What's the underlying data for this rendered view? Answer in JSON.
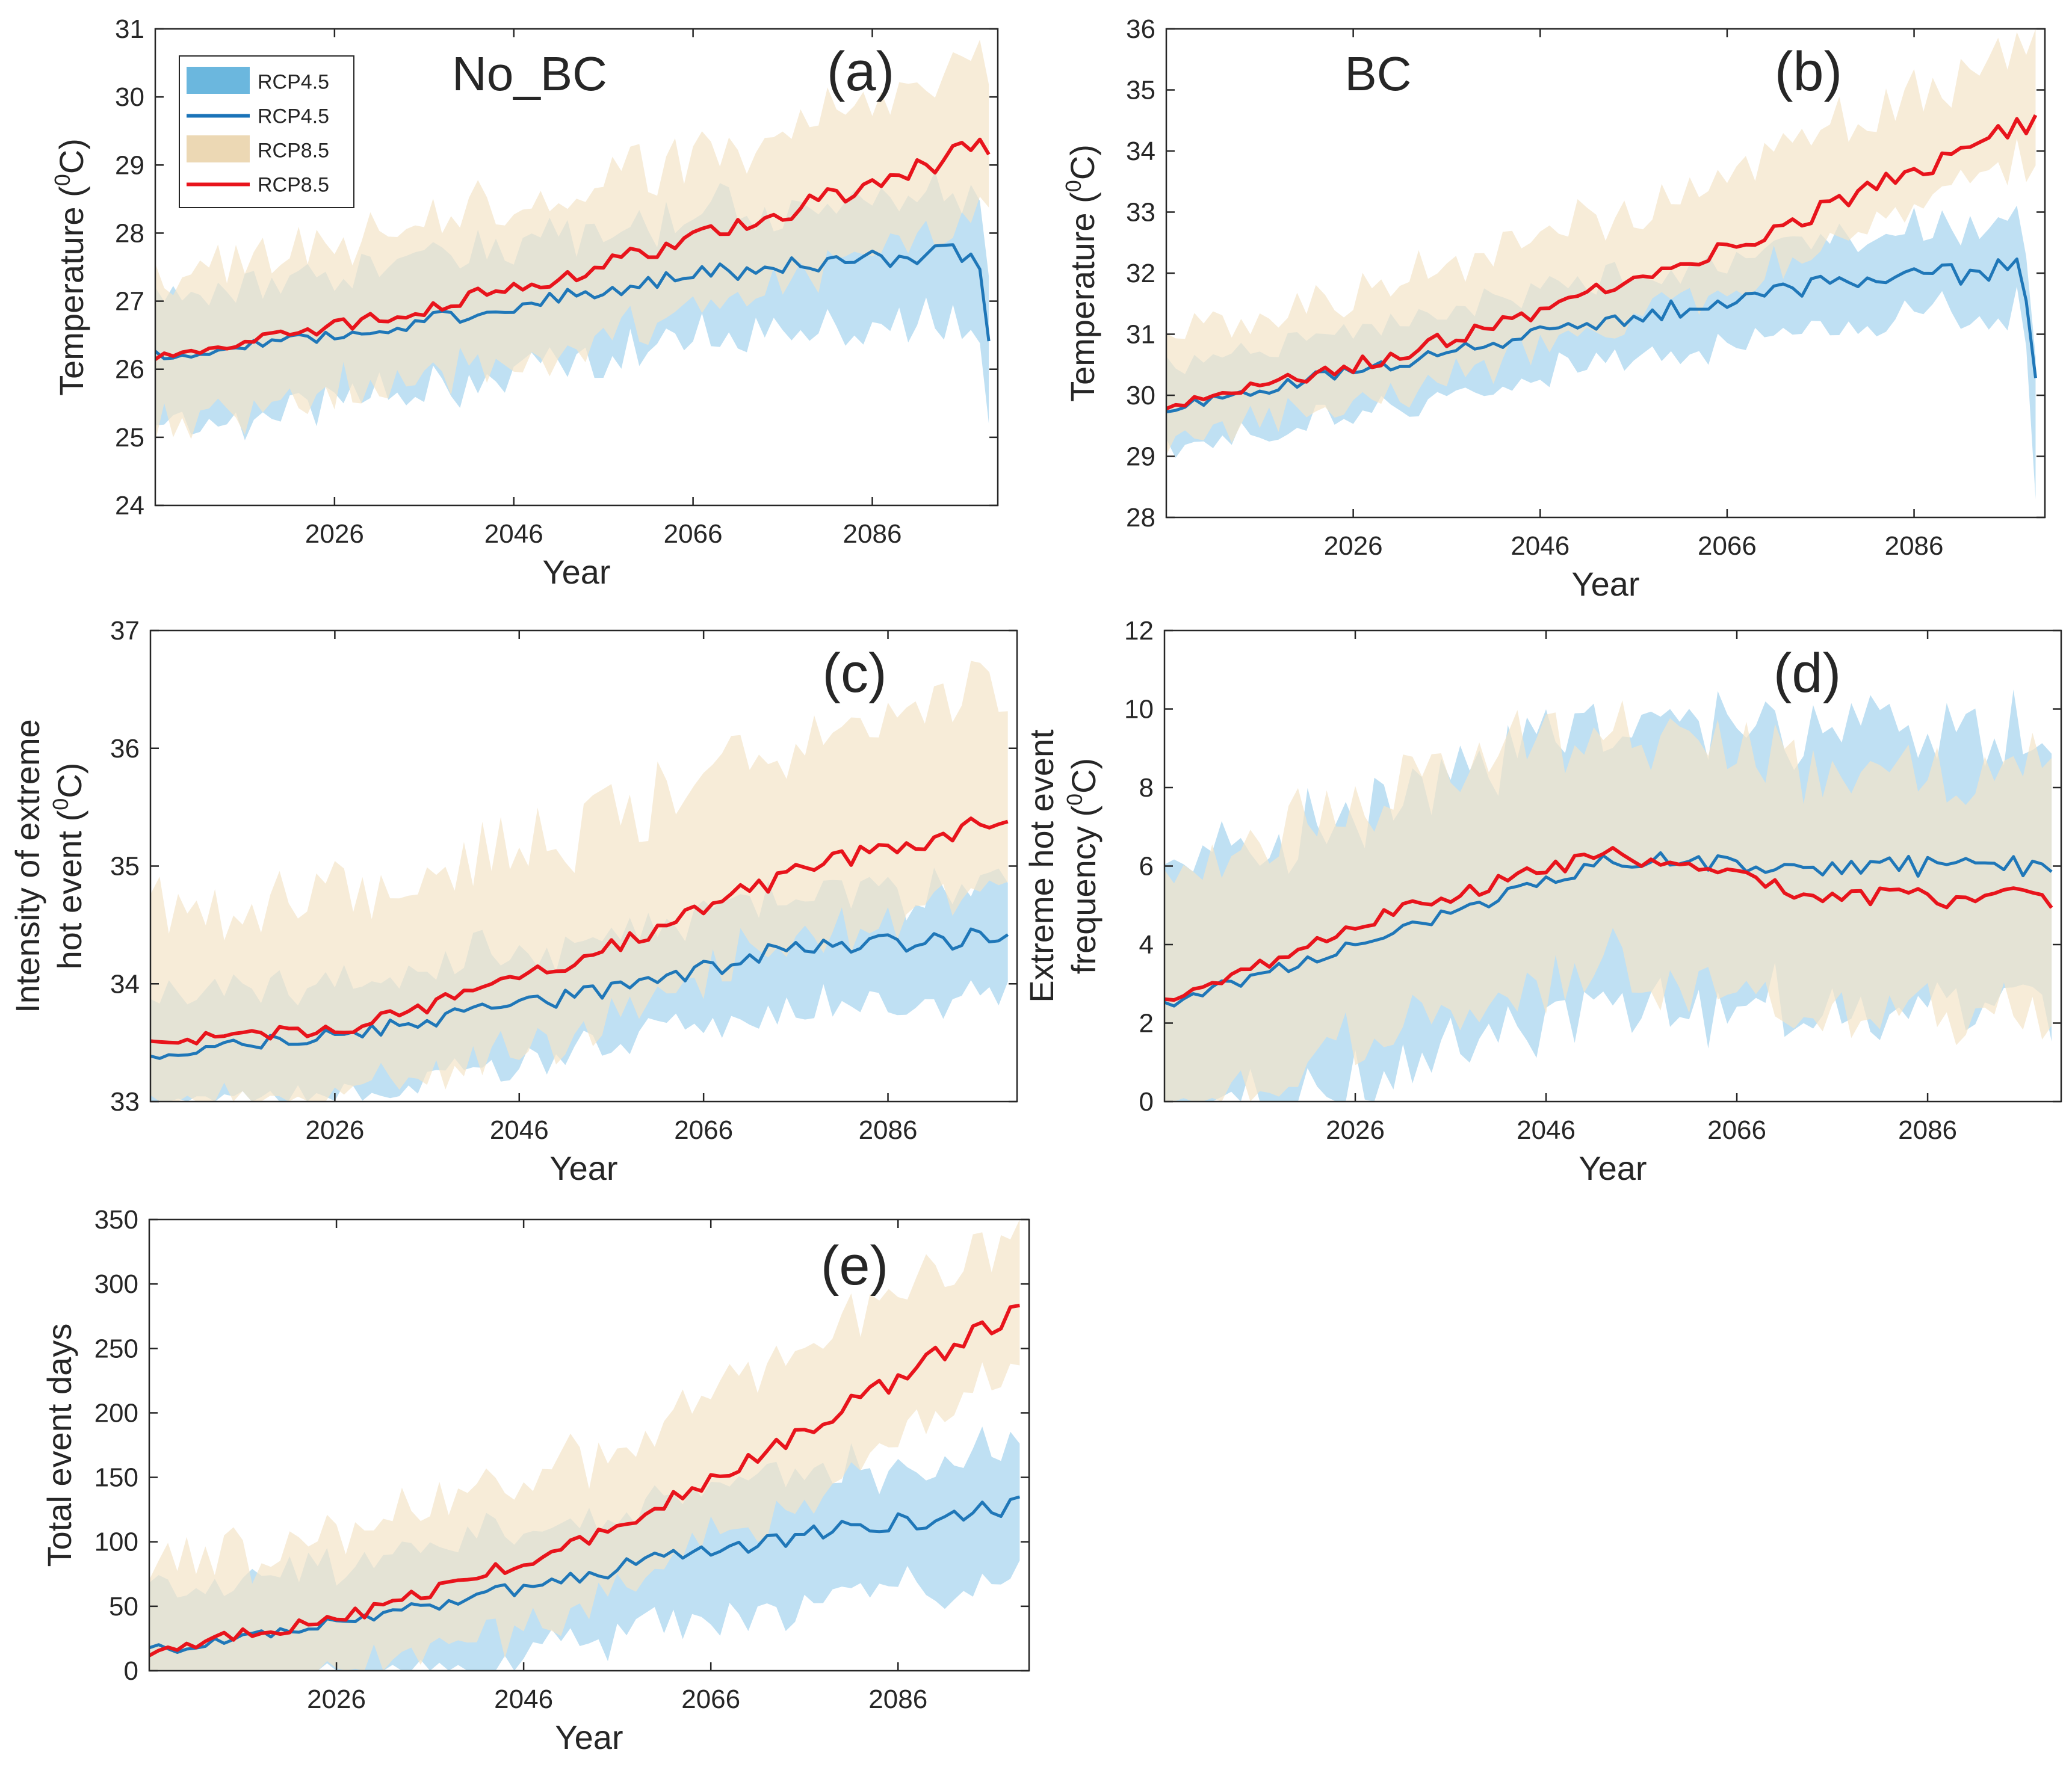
{
  "figure": {
    "legend": [
      {
        "label": "RCP4.5",
        "kind": "band",
        "color": "#6bb7de"
      },
      {
        "label": "RCP4.5",
        "kind": "line",
        "color": "#1a73b8"
      },
      {
        "label": "RCP8.5",
        "kind": "band",
        "color": "#ecd8b4"
      },
      {
        "label": "RCP8.5",
        "kind": "line",
        "color": "#e8141c"
      }
    ],
    "colors": {
      "rcp45_band": "#a9d6ef",
      "rcp45_line": "#1f77b8",
      "rcp85_band": "#f4e4c8",
      "rcp85_line": "#e8141c",
      "overlap_line": "#6aa3b4"
    }
  },
  "chart_data": [
    {
      "panel": "(a)",
      "title": "No_BC",
      "type": "line",
      "xlabel": "Year",
      "ylabel": "Temperature (0C)",
      "ylabel_parts": [
        "Temperature (",
        "0",
        "C)"
      ],
      "xlim": [
        2006,
        2100
      ],
      "ylim": [
        24,
        31
      ],
      "xticks": [
        2026,
        2046,
        2066,
        2086
      ],
      "yticks": [
        24,
        25,
        26,
        27,
        28,
        29,
        30,
        31
      ],
      "series": [
        {
          "name": "RCP4.5",
          "start": 2006,
          "end": 2099,
          "center": [
            26.2,
            26.55,
            27.1,
            27.55,
            27.7
          ],
          "spread_hi": 0.9,
          "spread_lo": 1.0,
          "end_drop": 25.2
        },
        {
          "name": "RCP8.5",
          "start": 2006,
          "end": 2099,
          "center": [
            26.2,
            26.7,
            27.4,
            28.3,
            29.3
          ],
          "spread_hi": 1.2,
          "spread_lo": 1.0
        }
      ]
    },
    {
      "panel": "(b)",
      "title": "BC",
      "type": "line",
      "xlabel": "Year",
      "ylabel": "Temperature (0C)",
      "ylabel_parts": [
        "Temperature (",
        "0",
        "C)"
      ],
      "xlim": [
        2006,
        2100
      ],
      "ylim": [
        28,
        36
      ],
      "xticks": [
        2026,
        2046,
        2066,
        2086
      ],
      "yticks": [
        28,
        29,
        30,
        31,
        32,
        33,
        34,
        35,
        36
      ],
      "series": [
        {
          "name": "RCP4.5",
          "start": 2006,
          "end": 2099,
          "center": [
            29.8,
            30.5,
            31.2,
            31.8,
            32.1
          ],
          "spread_hi": 0.7,
          "spread_lo": 0.7,
          "end_drop": 28.3
        },
        {
          "name": "RCP8.5",
          "start": 2006,
          "end": 2099,
          "center": [
            29.8,
            30.6,
            31.7,
            33.0,
            34.5
          ],
          "spread_hi": 1.2,
          "spread_lo": 0.6
        }
      ]
    },
    {
      "panel": "(c)",
      "title": "",
      "type": "line",
      "xlabel": "Year",
      "ylabel": "Intensity of extreme hot event (0C)",
      "ylabel_lines": [
        "Intensity of extreme",
        "hot event ("
      ],
      "ylabel_sup": "0",
      "ylabel_tail": "C)",
      "xlim": [
        2006,
        2100
      ],
      "ylim": [
        33,
        37
      ],
      "xticks": [
        2026,
        2046,
        2066,
        2086
      ],
      "yticks": [
        33,
        34,
        35,
        36,
        37
      ],
      "series": [
        {
          "name": "RCP4.5",
          "start": 2006,
          "end": 2099,
          "center": [
            33.4,
            33.6,
            33.9,
            34.3,
            34.4
          ],
          "spread_hi": 0.45,
          "spread_lo": 0.5
        },
        {
          "name": "RCP8.5",
          "start": 2006,
          "end": 2099,
          "center": [
            33.5,
            33.65,
            34.2,
            34.95,
            35.4
          ],
          "spread_hi": 1.1,
          "spread_lo": 0.6
        }
      ]
    },
    {
      "panel": "(d)",
      "title": "",
      "type": "line",
      "xlabel": "Year",
      "ylabel": "Extreme hot event frequency (0C)",
      "ylabel_lines": [
        "Extreme hot event",
        "frequency  ("
      ],
      "ylabel_sup": "0",
      "ylabel_tail": "C)",
      "xlim": [
        2006,
        2100
      ],
      "ylim": [
        0,
        12
      ],
      "xticks": [
        2026,
        2046,
        2066,
        2086
      ],
      "yticks": [
        0,
        2,
        4,
        6,
        8,
        10,
        12
      ],
      "series": [
        {
          "name": "RCP4.5",
          "start": 2006,
          "end": 2099,
          "center": [
            2.5,
            4.2,
            6.2,
            6.0,
            6.0
          ],
          "spread_hi": 3.5,
          "spread_lo": 3.5
        },
        {
          "name": "RCP8.5",
          "start": 2006,
          "end": 2099,
          "center": [
            2.5,
            4.8,
            6.3,
            5.2,
            5.2
          ],
          "spread_hi": 3.2,
          "spread_lo": 3.0
        }
      ]
    },
    {
      "panel": "(e)",
      "title": "",
      "type": "line",
      "xlabel": "Year",
      "ylabel": "Total event days",
      "xlim": [
        2006,
        2100
      ],
      "ylim": [
        0,
        350
      ],
      "xticks": [
        2026,
        2046,
        2066,
        2086
      ],
      "yticks": [
        0,
        50,
        100,
        150,
        200,
        250,
        300,
        350
      ],
      "series": [
        {
          "name": "RCP4.5",
          "start": 2006,
          "end": 2099,
          "center": [
            15,
            40,
            75,
            105,
            128
          ],
          "spread_hi": 45,
          "spread_lo": 55
        },
        {
          "name": "RCP8.5",
          "start": 2006,
          "end": 2099,
          "center": [
            15,
            45,
            100,
            185,
            280
          ],
          "spread_hi": 65,
          "spread_lo": 50
        }
      ]
    }
  ]
}
